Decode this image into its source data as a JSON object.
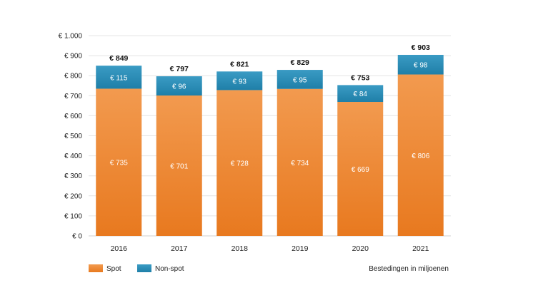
{
  "chart_data": {
    "type": "bar",
    "stacked": true,
    "categories": [
      "2016",
      "2017",
      "2018",
      "2019",
      "2020",
      "2021"
    ],
    "series": [
      {
        "name": "Spot",
        "values": [
          735,
          701,
          728,
          734,
          669,
          806
        ],
        "labels": [
          "€ 735",
          "€ 701",
          "€ 728",
          "€ 734",
          "€ 669",
          "€ 806"
        ],
        "color_top": "#f29a4f",
        "color_bottom": "#e8791f"
      },
      {
        "name": "Non-spot",
        "values": [
          115,
          96,
          93,
          95,
          84,
          98
        ],
        "labels": [
          "€ 115",
          "€ 96",
          "€ 93",
          "€ 95",
          "€ 84",
          "€ 98"
        ],
        "color_top": "#3a9bc4",
        "color_bottom": "#1f7fa8"
      }
    ],
    "totals": [
      849,
      797,
      821,
      829,
      753,
      903
    ],
    "total_labels": [
      "€ 849",
      "€ 797",
      "€ 821",
      "€ 829",
      "€ 753",
      "€ 903"
    ],
    "ylim": [
      0,
      1000
    ],
    "yticks": [
      0,
      100,
      200,
      300,
      400,
      500,
      600,
      700,
      800,
      900,
      1000
    ],
    "ytick_labels": [
      "€ 0",
      "€ 100",
      "€ 200",
      "€ 300",
      "€ 400",
      "€ 500",
      "€ 600",
      "€ 700",
      "€ 800",
      "€ 900",
      "€ 1.000"
    ],
    "grid": true,
    "legend": [
      "Spot",
      "Non-spot"
    ],
    "legend_position": "bottom-left",
    "annotation": "Bestedingen in miljoenen"
  }
}
